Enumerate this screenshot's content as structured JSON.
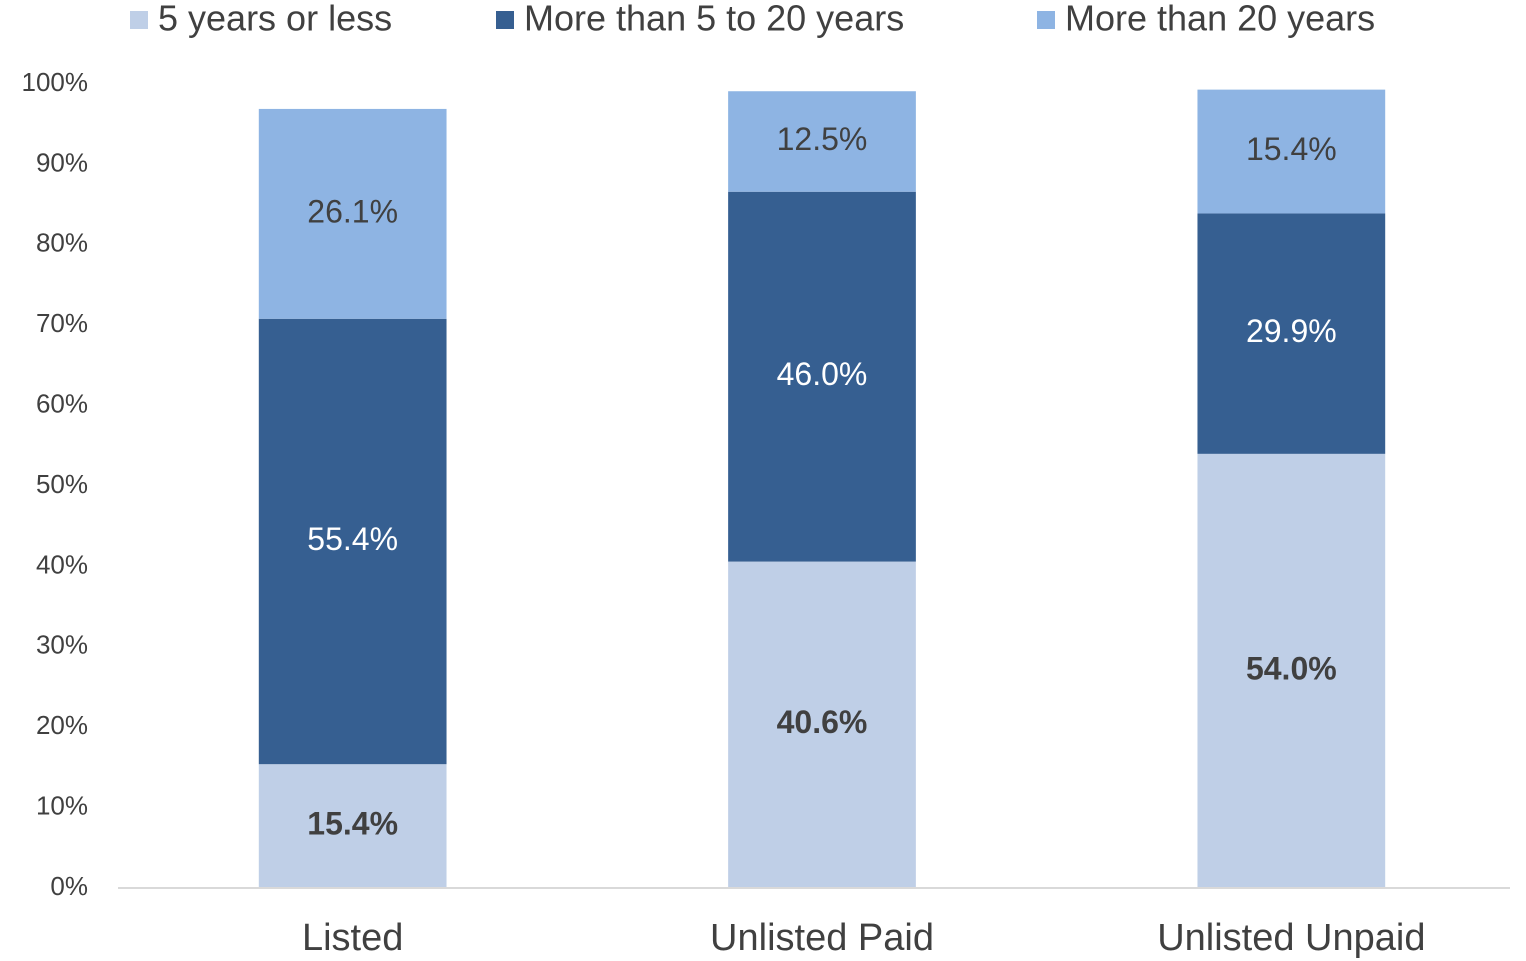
{
  "chart_data": {
    "type": "stacked_bar",
    "categories": [
      "Listed",
      "Unlisted Paid",
      "Unlisted Unpaid"
    ],
    "series": [
      {
        "name": "5 years or less",
        "color": "#bfcfe7",
        "values": [
          15.4,
          40.6,
          54.0
        ],
        "value_labels": [
          "15.4%",
          "40.6%",
          "54.0%"
        ]
      },
      {
        "name": "More than 5 to 20 years",
        "color": "#365f91",
        "values": [
          55.4,
          46.0,
          29.9
        ],
        "value_labels": [
          "55.4%",
          "46.0%",
          "29.9%"
        ]
      },
      {
        "name": "More than 20 years",
        "color": "#8eb4e3",
        "values": [
          26.1,
          12.5,
          15.4
        ],
        "value_labels": [
          "26.1%",
          "12.5%",
          "15.4%"
        ]
      }
    ],
    "ylim": [
      0,
      100
    ],
    "yticks": [
      {
        "value": 0,
        "label": "0%"
      },
      {
        "value": 10,
        "label": "10%"
      },
      {
        "value": 20,
        "label": "20%"
      },
      {
        "value": 30,
        "label": "30%"
      },
      {
        "value": 40,
        "label": "40%"
      },
      {
        "value": 50,
        "label": "50%"
      },
      {
        "value": 60,
        "label": "60%"
      },
      {
        "value": 70,
        "label": "70%"
      },
      {
        "value": 80,
        "label": "80%"
      },
      {
        "value": 90,
        "label": "90%"
      },
      {
        "value": 100,
        "label": "100%"
      }
    ],
    "grid": false,
    "legend": "top"
  }
}
